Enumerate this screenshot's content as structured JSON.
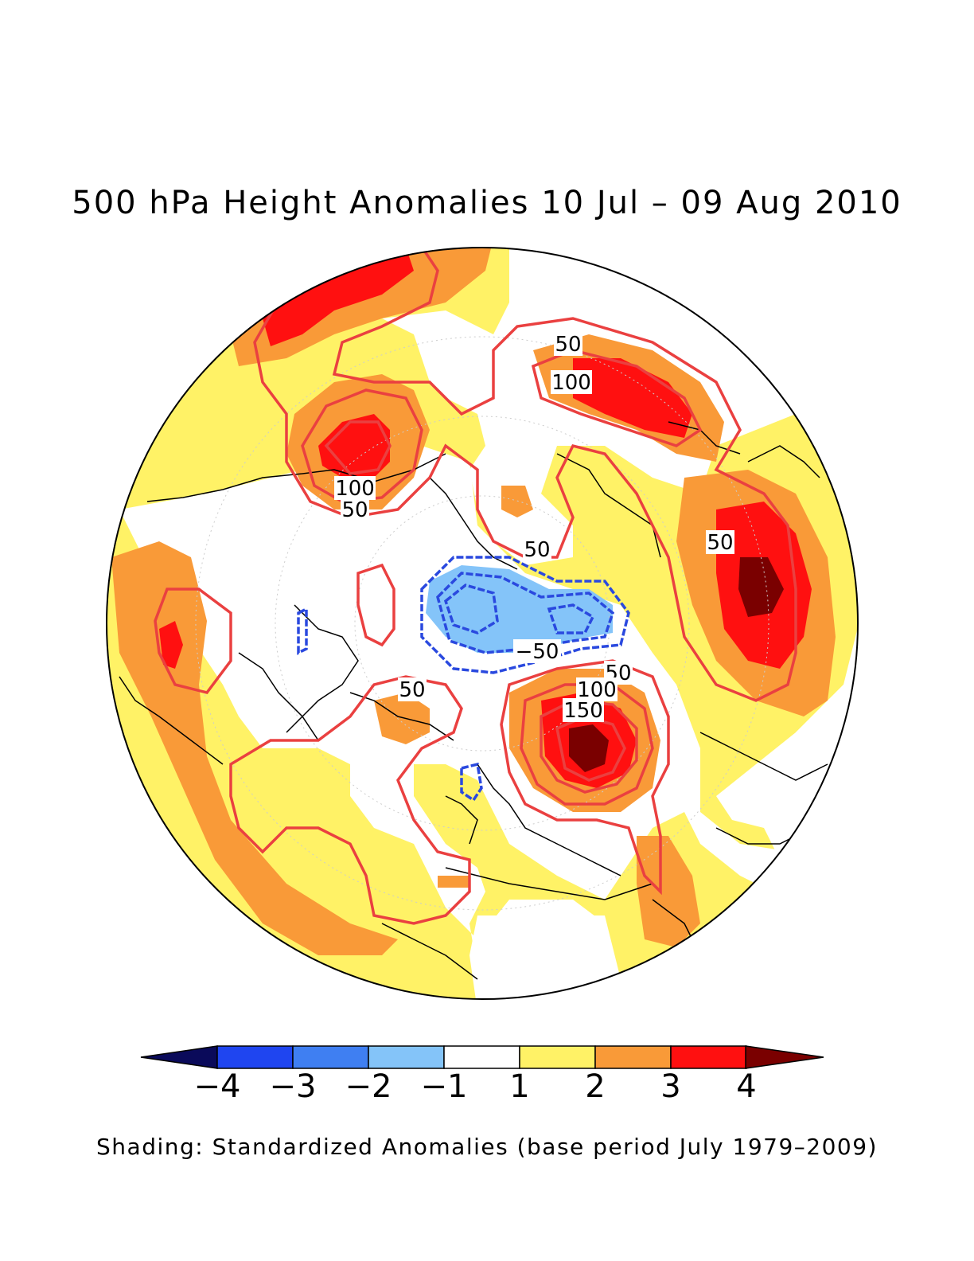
{
  "title": "500 hPa Height Anomalies 10 Jul – 09 Aug 2010",
  "caption": "Shading: Standardized Anomalies (base period July 1979–2009)",
  "colorbar": {
    "colors": [
      "#0a0a5a",
      "#1f45f0",
      "#3f7ff2",
      "#84c4f9",
      "#ffffff",
      "#fff266",
      "#f99a38",
      "#ff1010",
      "#7a0000"
    ],
    "ticks": [
      "−4",
      "−3",
      "−2",
      "−1",
      "1",
      "2",
      "3",
      "4"
    ]
  },
  "shading_colors": {
    "level2": "#fff266",
    "level3": "#f99a38",
    "level4": "#ff1010",
    "level5": "#7a0000",
    "neg1": "#84c4f9"
  },
  "contour_colors": {
    "positive": "#ea4040",
    "negative": "#2a49df"
  },
  "contour_labels": [
    {
      "text": "50",
      "id": "n-pacific-50"
    },
    {
      "text": "100",
      "id": "n-pacific-100"
    },
    {
      "text": "100",
      "id": "alaska-100"
    },
    {
      "text": "50",
      "id": "alaska-50"
    },
    {
      "text": "50",
      "id": "chukchi-50"
    },
    {
      "text": "50",
      "id": "n-america-50"
    },
    {
      "text": "−50",
      "id": "arctic-neg50"
    },
    {
      "text": "50",
      "id": "russia-50"
    },
    {
      "text": "100",
      "id": "russia-100"
    },
    {
      "text": "150",
      "id": "russia-150"
    },
    {
      "text": "50",
      "id": "atlantic-50"
    }
  ]
}
